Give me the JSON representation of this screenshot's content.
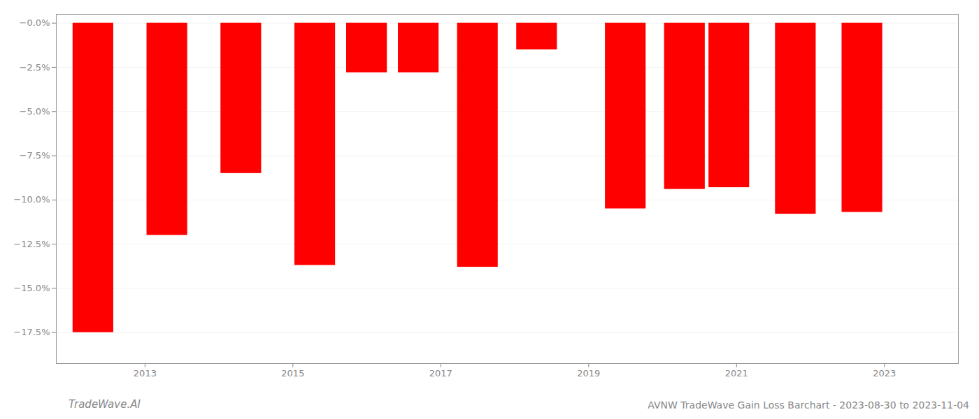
{
  "chart_data": {
    "type": "bar",
    "x": [
      2012.3,
      2013.3,
      2014.3,
      2015.3,
      2016.0,
      2016.7,
      2017.5,
      2018.3,
      2019.5,
      2020.3,
      2020.9,
      2021.8,
      2022.7
    ],
    "values": [
      -0.175,
      -0.12,
      -0.085,
      -0.137,
      -0.028,
      -0.028,
      -0.138,
      -0.015,
      -0.105,
      -0.094,
      -0.093,
      -0.108,
      -0.107
    ],
    "color": "#FF0000",
    "xlim": [
      2011.8,
      2024.0
    ],
    "xticks": [
      2013,
      2015,
      2017,
      2019,
      2021,
      2023
    ],
    "ylim": [
      -0.1925,
      0.005
    ],
    "yticks": [
      {
        "value": 0.0,
        "label": "−0.0%"
      },
      {
        "value": -0.025,
        "label": "−2.5%"
      },
      {
        "value": -0.05,
        "label": "−5.0%"
      },
      {
        "value": -0.075,
        "label": "−7.5%"
      },
      {
        "value": -0.1,
        "label": "−10.0%"
      },
      {
        "value": -0.125,
        "label": "−12.5%"
      },
      {
        "value": -0.15,
        "label": "−15.0%"
      },
      {
        "value": -0.175,
        "label": "−17.5%"
      }
    ],
    "grid": true,
    "annotations": [
      "TradeWave.AI",
      "AVNW TradeWave Gain Loss Barchart - 2023-08-30 to 2023-11-04"
    ]
  }
}
